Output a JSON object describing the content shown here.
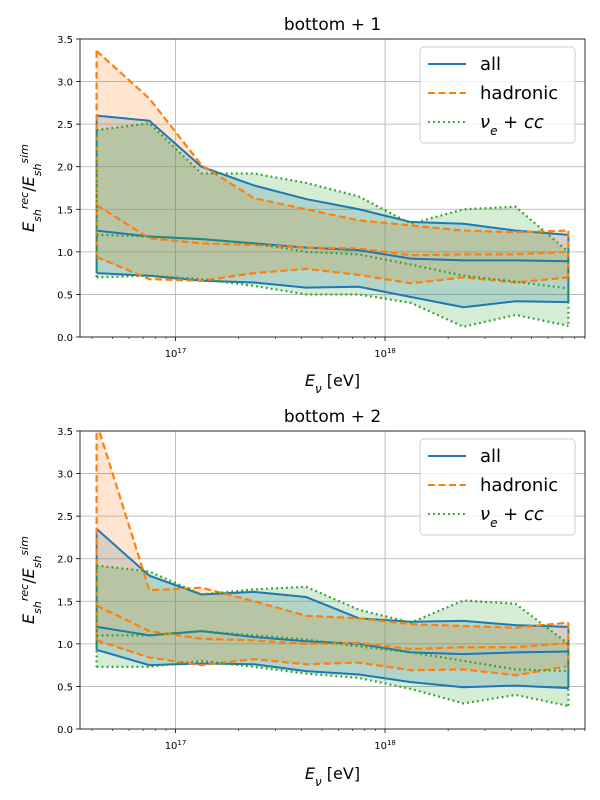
{
  "figure": {
    "xlabel": "E_ν [eV]",
    "ylabel": "E_sh^rec / E_sh^sim"
  },
  "colors": {
    "all": "#1f77b4",
    "hadronic": "#ff7f0e",
    "nue_cc": "#2ca02c"
  },
  "chart_data": [
    {
      "type": "line",
      "title": "bottom + 1",
      "xlabel": "E_ν [eV]",
      "ylabel": "E_sh^rec/E_sh^sim",
      "xscale": "log",
      "xlim": [
        3.5e+16,
        9e+18
      ],
      "ylim": [
        0,
        3.5
      ],
      "yticks": [
        "0.0",
        "0.5",
        "1.0",
        "1.5",
        "2.0",
        "2.5",
        "3.0",
        "3.5"
      ],
      "xticks": [
        {
          "value": 1e+17,
          "base": "10",
          "exp": "17"
        },
        {
          "value": 1e+18,
          "base": "10",
          "exp": "18"
        }
      ],
      "legend": [
        "all",
        "hadronic",
        "ν_e + cc"
      ],
      "legend_position": "top-right",
      "x": [
        4.2e+16,
        7.5e+16,
        1.33e+17,
        2.37e+17,
        4.2e+17,
        7.5e+17,
        1.33e+18,
        2.37e+18,
        4.2e+18,
        7.5e+18
      ],
      "series": [
        {
          "name": "all",
          "style": "solid",
          "median": [
            1.25,
            1.18,
            1.15,
            1.1,
            1.05,
            1.02,
            0.92,
            0.9,
            0.9,
            0.89
          ],
          "upper": [
            2.6,
            2.54,
            2.0,
            1.78,
            1.62,
            1.5,
            1.35,
            1.33,
            1.25,
            1.2
          ],
          "lower": [
            0.75,
            0.72,
            0.66,
            0.64,
            0.58,
            0.59,
            0.47,
            0.35,
            0.42,
            0.41
          ]
        },
        {
          "name": "hadronic",
          "style": "dashed",
          "median": [
            1.55,
            1.16,
            1.1,
            1.08,
            1.05,
            1.04,
            0.96,
            0.97,
            0.97,
            1.0
          ],
          "upper": [
            3.36,
            2.8,
            2.02,
            1.63,
            1.5,
            1.37,
            1.31,
            1.25,
            1.23,
            1.25
          ],
          "lower": [
            0.94,
            0.68,
            0.66,
            0.75,
            0.8,
            0.73,
            0.63,
            0.7,
            0.64,
            0.7
          ]
        },
        {
          "name": "ν_e + cc",
          "style": "dotted",
          "median": [
            1.2,
            1.18,
            1.15,
            1.1,
            1.0,
            0.97,
            0.85,
            0.72,
            0.65,
            0.57
          ],
          "upper": [
            2.43,
            2.51,
            1.92,
            1.92,
            1.81,
            1.65,
            1.33,
            1.5,
            1.53,
            1.0
          ],
          "lower": [
            0.7,
            0.72,
            0.68,
            0.6,
            0.5,
            0.5,
            0.4,
            0.12,
            0.26,
            0.13
          ]
        }
      ]
    },
    {
      "type": "line",
      "title": "bottom + 2",
      "xlabel": "E_ν [eV]",
      "ylabel": "E_sh^rec/E_sh^sim",
      "xscale": "log",
      "xlim": [
        3.5e+16,
        9e+18
      ],
      "ylim": [
        0,
        3.5
      ],
      "yticks": [
        "0.0",
        "0.5",
        "1.0",
        "1.5",
        "2.0",
        "2.5",
        "3.0",
        "3.5"
      ],
      "xticks": [
        {
          "value": 1e+17,
          "base": "10",
          "exp": "17"
        },
        {
          "value": 1e+18,
          "base": "10",
          "exp": "18"
        }
      ],
      "legend": [
        "all",
        "hadronic",
        "ν_e + cc"
      ],
      "legend_position": "top-right",
      "x": [
        4.2e+16,
        7.5e+16,
        1.33e+17,
        2.37e+17,
        4.2e+17,
        7.5e+17,
        1.33e+18,
        2.37e+18,
        4.2e+18,
        7.5e+18
      ],
      "series": [
        {
          "name": "all",
          "style": "solid",
          "median": [
            1.2,
            1.1,
            1.15,
            1.08,
            1.03,
            1.0,
            0.9,
            0.88,
            0.9,
            0.91
          ],
          "upper": [
            2.35,
            1.8,
            1.58,
            1.61,
            1.55,
            1.3,
            1.26,
            1.27,
            1.22,
            1.2
          ],
          "lower": [
            0.93,
            0.75,
            0.77,
            0.76,
            0.68,
            0.64,
            0.55,
            0.49,
            0.51,
            0.48
          ]
        },
        {
          "name": "hadronic",
          "style": "dashed",
          "median": [
            1.45,
            1.15,
            1.06,
            1.04,
            1.0,
            1.01,
            0.94,
            0.96,
            0.96,
            1.01
          ],
          "upper": [
            3.6,
            1.63,
            1.66,
            1.5,
            1.33,
            1.3,
            1.23,
            1.21,
            1.19,
            1.25
          ],
          "lower": [
            1.04,
            0.84,
            0.75,
            0.82,
            0.76,
            0.78,
            0.69,
            0.7,
            0.63,
            0.74
          ]
        },
        {
          "name": "ν_e + cc",
          "style": "dotted",
          "median": [
            1.1,
            1.1,
            1.15,
            1.1,
            1.05,
            0.97,
            0.9,
            0.8,
            0.7,
            0.68
          ],
          "upper": [
            1.92,
            1.85,
            1.58,
            1.64,
            1.67,
            1.4,
            1.25,
            1.51,
            1.47,
            1.0
          ],
          "lower": [
            0.73,
            0.73,
            0.8,
            0.73,
            0.65,
            0.6,
            0.47,
            0.3,
            0.4,
            0.27
          ]
        }
      ]
    }
  ]
}
